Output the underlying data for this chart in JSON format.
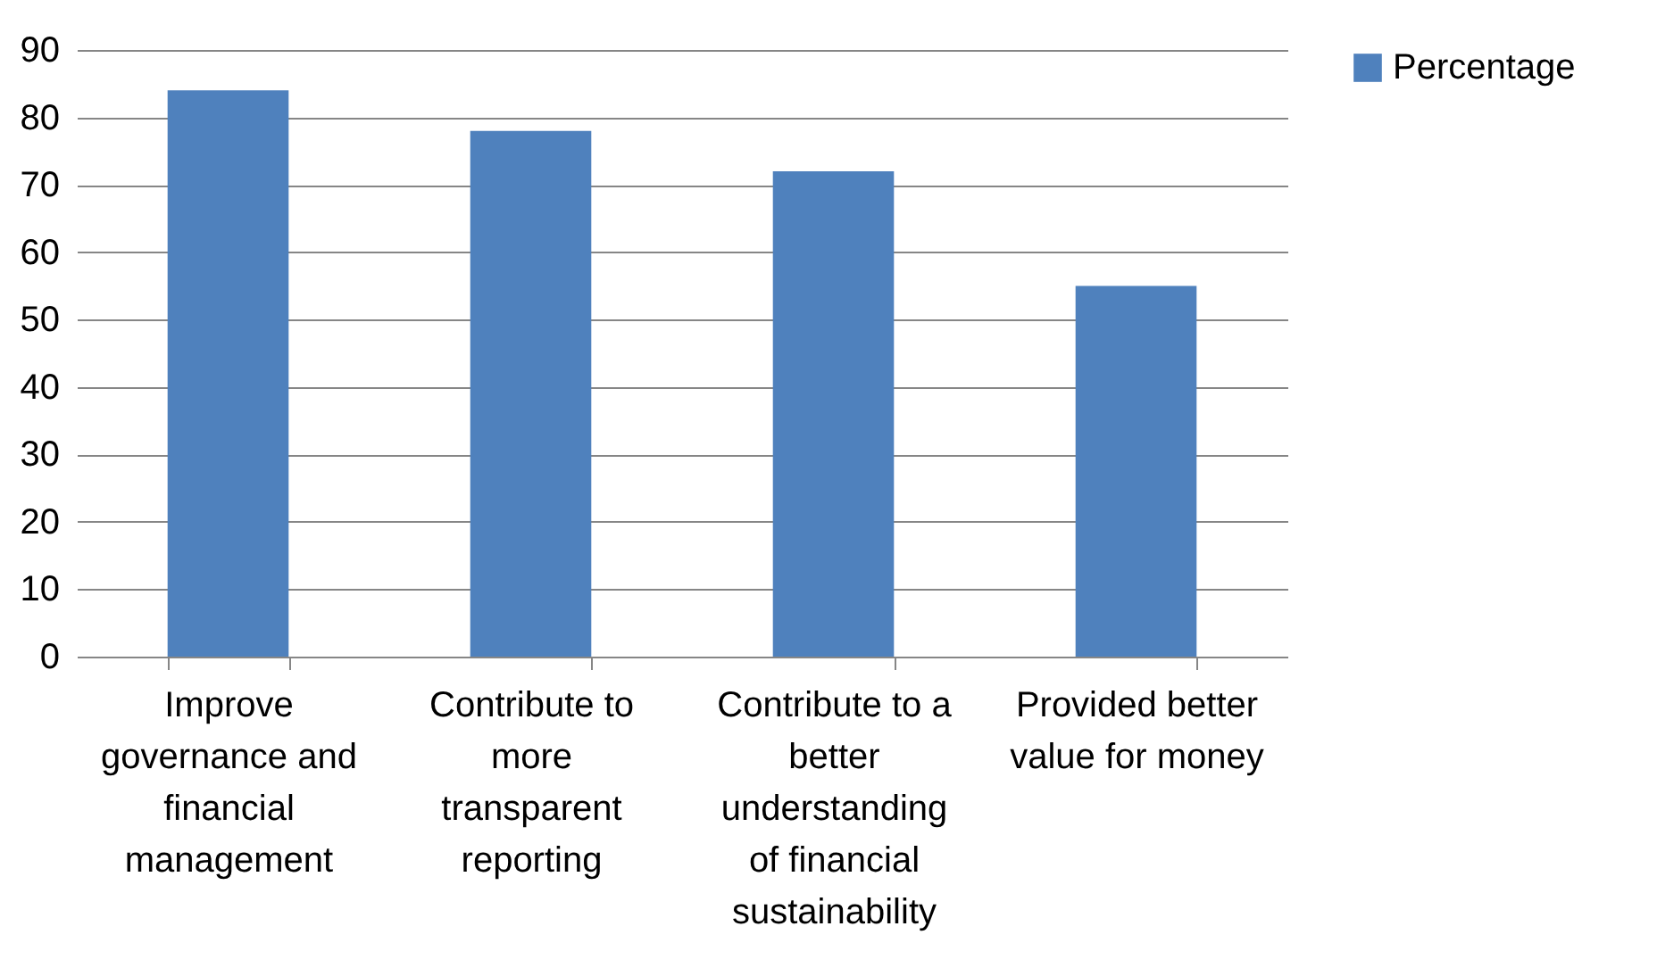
{
  "chart_data": {
    "type": "bar",
    "categories": [
      "Improve governance and financial management",
      "Contribute to more transparent reporting",
      "Contribute to a better understanding of financial sustainability",
      "Provided better value for money"
    ],
    "series": [
      {
        "name": "Percentage",
        "color": "#4f81bd",
        "values": [
          84,
          78,
          72,
          55
        ]
      }
    ],
    "ylim": [
      0,
      90
    ],
    "yticks": [
      0,
      10,
      20,
      30,
      40,
      50,
      60,
      70,
      80,
      90
    ],
    "grid": "y",
    "legend": "right"
  }
}
